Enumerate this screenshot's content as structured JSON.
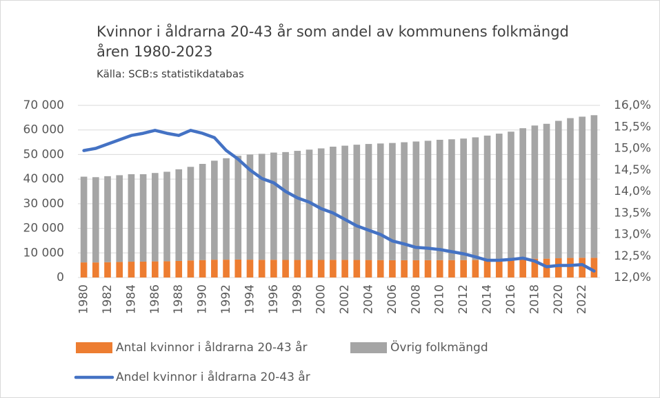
{
  "chart_data": {
    "type": "bar",
    "title": [
      "Kvinnor i åldrarna 20-43 år som andel av kommunens folkmängd",
      "åren 1980-2023"
    ],
    "subtitle": "Källa: SCB:s statistikdatabas",
    "categories": [
      "1980",
      null,
      "1982",
      null,
      "1984",
      null,
      "1986",
      null,
      "1988",
      null,
      "1990",
      null,
      "1992",
      null,
      "1994",
      null,
      "1996",
      null,
      "1998",
      null,
      "2000",
      null,
      "2002",
      null,
      "2004",
      null,
      "2006",
      null,
      "2008",
      null,
      "2010",
      null,
      "2012",
      null,
      "2014",
      null,
      "2016",
      null,
      "2018",
      null,
      "2020",
      null,
      "2022",
      null
    ],
    "series": [
      {
        "name": "Antal kvinnor i åldrarna 20-43 år",
        "type": "bar",
        "color": "#ed7d31",
        "values": [
          6130,
          6120,
          6220,
          6320,
          6430,
          6450,
          6550,
          6600,
          6730,
          6940,
          7090,
          7240,
          7250,
          7300,
          7250,
          7190,
          7210,
          7140,
          7130,
          7150,
          7140,
          7180,
          7160,
          7130,
          7110,
          7090,
          7030,
          7030,
          7020,
          7050,
          7080,
          7080,
          7090,
          7110,
          7150,
          7250,
          7370,
          7560,
          7650,
          7660,
          7830,
          7960,
          8040,
          8020
        ]
      },
      {
        "name": "Övrig folkmängd",
        "type": "bar",
        "color": "#a5a5a5",
        "values": [
          34870,
          34680,
          34980,
          35280,
          35570,
          35550,
          35950,
          36400,
          37270,
          38060,
          39110,
          40260,
          41250,
          42200,
          42750,
          43110,
          43590,
          43860,
          44370,
          44850,
          45360,
          46020,
          46440,
          46870,
          47190,
          47410,
          47670,
          47970,
          48280,
          48550,
          48920,
          49120,
          49410,
          49890,
          50550,
          51250,
          51930,
          53140,
          54150,
          54840,
          55870,
          56840,
          57360,
          57980
        ]
      },
      {
        "name": "Andel kvinnor i åldrarna 20-43 år",
        "type": "line",
        "axis": "y2",
        "color": "#4472c4",
        "values": [
          14.95,
          15.0,
          15.1,
          15.2,
          15.3,
          15.35,
          15.42,
          15.35,
          15.3,
          15.42,
          15.35,
          15.25,
          14.95,
          14.75,
          14.5,
          14.3,
          14.2,
          14.0,
          13.85,
          13.75,
          13.6,
          13.5,
          13.35,
          13.2,
          13.1,
          13.0,
          12.85,
          12.78,
          12.7,
          12.68,
          12.65,
          12.6,
          12.55,
          12.48,
          12.4,
          12.4,
          12.42,
          12.45,
          12.38,
          12.25,
          12.28,
          12.28,
          12.3,
          12.15
        ]
      }
    ],
    "ylim": [
      0,
      70000
    ],
    "yticks": [
      0,
      {
        "value": 10000,
        "label": "10 000"
      },
      {
        "value": 20000,
        "label": "20 000"
      },
      {
        "value": 30000,
        "label": "30 000"
      },
      {
        "value": 40000,
        "label": "40 000"
      },
      {
        "value": 50000,
        "label": "50 000"
      },
      {
        "value": 60000,
        "label": "60 000"
      },
      {
        "value": 70000,
        "label": "70 000"
      }
    ],
    "y2lim": [
      12,
      16
    ],
    "y2ticks": [
      {
        "value": 12,
        "label": "12,0%"
      },
      {
        "value": 12.5,
        "label": "12,5%"
      },
      {
        "value": 13,
        "label": "13,0%"
      },
      {
        "value": 13.5,
        "label": "13,5%"
      },
      {
        "value": 14,
        "label": "14,0%"
      },
      {
        "value": 14.5,
        "label": "14,5%"
      },
      {
        "value": 15,
        "label": "15,0%"
      },
      {
        "value": 15.5,
        "label": "15,5%"
      },
      {
        "value": 16,
        "label": "16,0%"
      }
    ],
    "grid": true
  }
}
